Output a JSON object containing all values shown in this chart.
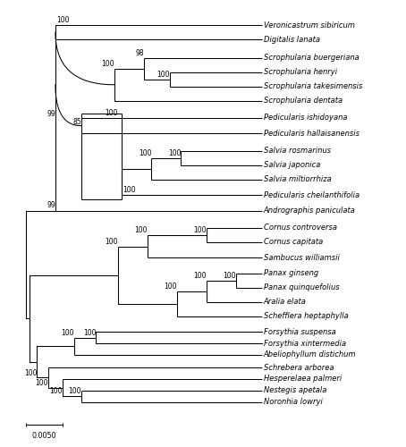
{
  "figure_width": 4.54,
  "figure_height": 5.0,
  "dpi": 100,
  "background_color": "#ffffff",
  "line_color": "#000000",
  "text_color": "#000000",
  "taxa_fontsize": 6.0,
  "bootstrap_fontsize": 5.5,
  "scale_bar_label": "0.0050",
  "leaf_y": {
    "Veronicastrum sibiricum": 26.5,
    "Digitalis lanata": 25.5,
    "Scrophularia buergeriana": 24.2,
    "Scrophularia henryi": 23.2,
    "Scrophularia takesimensis": 22.2,
    "Scrophularia dentata": 21.2,
    "Pedicularis ishidoyana": 20.0,
    "Pedicularis hallaisanensis": 18.9,
    "Salvia rosmarinus": 17.7,
    "Salvia japonica": 16.7,
    "Salvia miltiorrhiza": 15.7,
    "Pedicularis cheilanthifolia": 14.6,
    "Andrographis paniculata": 13.5,
    "Cornus controversa": 12.3,
    "Cornus capitata": 11.3,
    "Sambucus williamsii": 10.2,
    "Panax ginseng": 9.1,
    "Panax quinquefolius": 8.1,
    "Aralia elata": 7.1,
    "Schefflera heptaphylla": 6.1,
    "Forsythia suspensa": 5.0,
    "Forsythia xintermedia": 4.2,
    "Abeliophyllum distichum": 3.4,
    "Schrebera arborea": 2.5,
    "Hesperelaea palmeri": 1.7,
    "Nestegis apetala": 0.9,
    "Noronhia lowryi": 0.1
  },
  "tip_x": 67.0,
  "xlim": [
    -3,
    105
  ],
  "ylim": [
    -2.8,
    28.0
  ]
}
